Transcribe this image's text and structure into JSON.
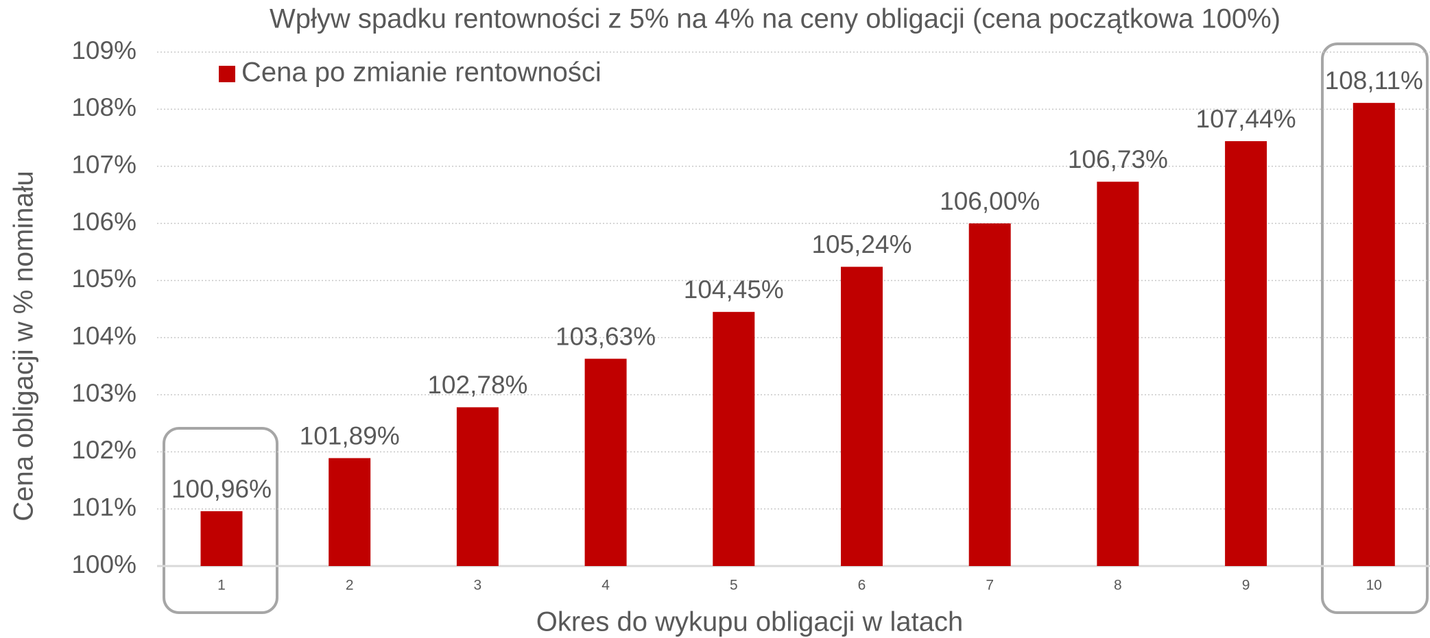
{
  "chart_data": {
    "type": "bar",
    "title": "Wpływ spadku rentowności z 5% na 4% na ceny obligacji (cena początkowa 100%)",
    "xlabel": "Okres do wykupu obligacji w latach",
    "ylabel": "Cena obligacji w % nominału",
    "categories": [
      "1",
      "2",
      "3",
      "4",
      "5",
      "6",
      "7",
      "8",
      "9",
      "10"
    ],
    "series": [
      {
        "name": "Cena po zmianie rentowności",
        "color": "#c00000",
        "values": [
          100.96,
          101.89,
          102.78,
          103.63,
          104.45,
          105.24,
          106.0,
          106.73,
          107.44,
          108.11
        ],
        "value_labels": [
          "100,96%",
          "101,89%",
          "102,78%",
          "103,63%",
          "104,45%",
          "105,24%",
          "106,00%",
          "106,73%",
          "107,44%",
          "108,11%"
        ]
      }
    ],
    "ylim": [
      100,
      109
    ],
    "yticks": [
      {
        "value": 100,
        "label": "100%"
      },
      {
        "value": 101,
        "label": "101%"
      },
      {
        "value": 102,
        "label": "102%"
      },
      {
        "value": 103,
        "label": "103%"
      },
      {
        "value": 104,
        "label": "104%"
      },
      {
        "value": 105,
        "label": "105%"
      },
      {
        "value": 106,
        "label": "106%"
      },
      {
        "value": 107,
        "label": "107%"
      },
      {
        "value": 108,
        "label": "108%"
      },
      {
        "value": 109,
        "label": "109%"
      }
    ],
    "grid": true,
    "legend": "upper left"
  }
}
